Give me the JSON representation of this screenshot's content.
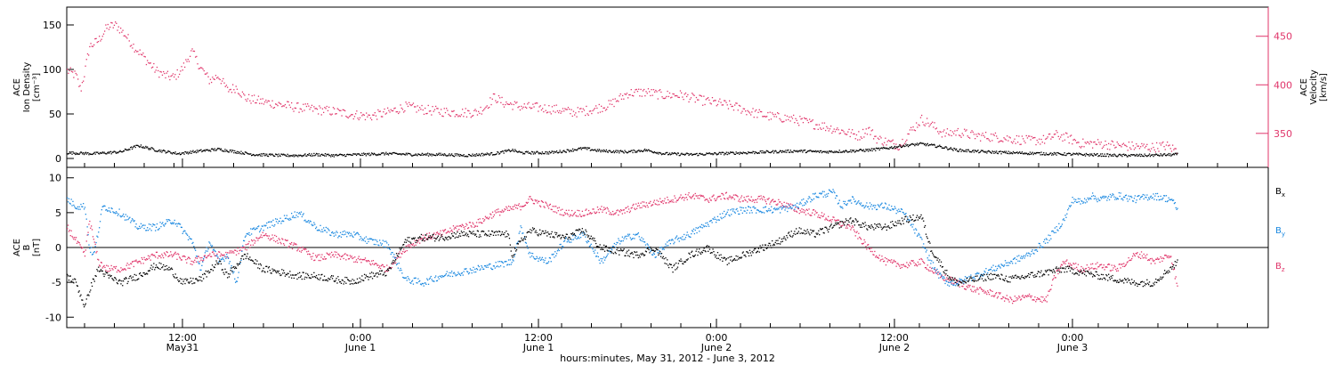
{
  "chart_data": [
    {
      "type": "scatter",
      "panel": "top",
      "ylabel": [
        "ACE",
        "Ion Density",
        "[cm⁻³]"
      ],
      "ylabel_right": [
        "ACE",
        "Velocity",
        "[km/s]"
      ],
      "ylim": [
        -10,
        170
      ],
      "yticks": [
        0,
        50,
        100,
        150
      ],
      "ylim_right": [
        315,
        480
      ],
      "yticks_right": [
        350,
        400,
        450
      ],
      "series": [
        {
          "name": "",
          "axis": "left",
          "color": "#000000",
          "x": [
            0,
            1,
            2,
            3,
            4,
            5,
            6,
            7,
            8,
            9,
            10,
            11,
            12,
            14,
            16,
            18,
            20,
            22,
            24,
            26,
            28,
            30,
            32,
            34,
            36,
            38,
            40,
            42,
            44,
            46,
            48,
            50,
            52,
            54,
            56,
            58,
            60,
            62,
            64,
            66,
            68,
            70,
            72,
            74,
            76,
            78,
            80,
            82,
            84,
            86,
            88,
            90,
            92,
            94,
            96,
            98,
            100,
            102,
            104,
            106,
            108,
            110,
            112,
            114,
            116,
            118,
            120,
            122,
            124,
            126,
            128,
            130,
            132,
            134,
            136,
            138,
            140,
            142,
            144,
            146,
            148,
            150,
            152,
            154,
            156,
            158,
            160,
            162,
            164,
            166,
            168,
            170,
            172,
            174,
            176,
            178,
            180,
            182,
            184,
            186,
            188,
            190,
            192,
            194,
            196,
            198,
            200,
            202,
            204,
            206,
            208,
            210,
            212,
            214,
            216,
            218,
            220,
            222,
            224,
            226,
            228,
            230,
            232,
            234,
            236,
            238,
            240,
            242,
            244,
            246,
            248,
            250,
            252,
            254,
            256,
            258,
            260,
            262,
            264,
            266,
            268,
            270,
            272,
            274,
            276,
            278,
            280,
            282,
            284,
            286,
            288,
            290,
            292,
            294,
            296,
            298,
            300,
            302,
            304,
            306,
            308,
            310,
            312,
            314,
            316,
            318,
            320,
            322,
            324,
            326,
            328,
            330,
            332,
            334,
            336,
            338,
            340,
            342,
            344,
            346,
            348,
            350,
            352,
            354,
            356,
            358,
            360,
            362,
            364,
            366,
            368,
            370,
            372,
            374,
            376,
            378,
            380,
            382,
            384,
            386,
            388,
            390,
            392,
            394,
            396,
            398,
            400,
            402,
            404,
            406,
            408,
            410,
            412,
            414,
            416,
            418,
            420,
            422,
            424,
            426,
            428,
            430,
            432,
            434,
            436,
            438,
            440,
            442,
            444,
            446,
            448,
            450,
            452,
            454,
            456,
            458,
            460,
            462,
            464,
            466,
            468,
            470,
            472,
            474,
            476,
            478,
            480,
            482,
            484,
            486,
            488,
            490,
            492,
            494,
            496,
            498,
            500,
            502,
            504,
            506,
            508,
            510,
            512,
            514,
            516,
            518,
            520,
            522,
            524,
            526,
            528,
            530,
            532,
            534,
            536,
            538,
            540,
            542,
            544,
            546,
            548,
            550,
            552,
            554,
            556,
            558,
            560,
            562,
            564,
            566,
            568,
            570,
            572,
            574,
            576,
            578,
            580,
            582,
            584,
            586,
            588,
            590,
            592,
            594,
            596,
            598,
            600,
            602,
            604,
            606,
            608,
            610,
            612,
            614,
            616,
            618,
            620,
            622,
            624,
            626,
            628,
            630,
            632,
            634,
            636,
            638,
            640,
            642,
            644,
            646,
            648,
            650,
            652,
            654,
            656,
            658,
            660,
            662,
            664,
            666,
            668,
            670,
            672,
            674,
            676,
            678,
            680,
            682,
            684,
            686,
            688,
            690,
            692,
            694,
            696,
            698,
            700,
            702,
            704,
            706,
            708,
            710,
            712,
            714,
            716,
            718,
            720,
            722,
            724,
            726,
            728,
            730,
            732,
            734,
            736,
            738,
            740,
            742,
            744,
            746,
            748,
            750,
            752,
            754,
            756,
            758,
            760,
            762,
            764,
            766,
            768,
            770,
            772,
            774,
            776,
            778,
            780,
            782,
            784,
            786,
            788,
            790,
            792,
            794,
            796,
            798,
            800,
            802,
            804,
            806,
            808,
            810,
            812,
            814,
            816,
            818,
            820,
            822,
            824,
            826,
            828,
            830,
            832,
            834,
            836,
            838,
            840,
            842,
            844,
            846,
            848,
            850,
            852,
            854,
            856,
            858,
            860,
            862,
            864,
            866,
            868,
            870,
            872,
            874,
            876,
            878,
            880,
            882,
            884,
            886,
            888,
            890,
            892,
            894,
            896,
            898,
            900,
            902,
            904,
            906,
            908,
            910,
            912,
            914,
            916,
            918,
            920,
            922,
            924,
            926,
            928,
            930,
            932,
            934,
            936,
            938,
            940,
            942,
            944,
            946,
            948,
            950,
            952,
            954,
            956,
            958,
            960,
            962,
            964,
            966,
            968,
            970,
            972,
            974,
            976,
            978,
            980,
            982,
            984,
            986,
            988,
            990,
            992,
            994,
            996,
            998,
            1000,
            1002,
            1004,
            1006,
            1008,
            1010,
            1012,
            1014,
            1016,
            1018,
            1020,
            1022,
            1024,
            1026,
            1028,
            1030,
            1032,
            1034,
            1036,
            1038,
            1040,
            1042,
            1044,
            1046,
            1048,
            1050,
            1052,
            1054,
            1056,
            1058,
            1060,
            1062,
            1064,
            1066,
            1068,
            1070,
            1072,
            1074,
            1076,
            1078,
            1080,
            1082,
            1084,
            1086,
            1088,
            1090,
            1092,
            1094,
            1096,
            1098,
            1100,
            1102,
            1104,
            1106,
            1108,
            1110,
            1112,
            1114,
            1116,
            1118,
            1120,
            1122,
            1124,
            1126,
            1128,
            1130,
            1132,
            1134,
            1136,
            1138,
            1140,
            1142,
            1144,
            1146,
            1148,
            1150,
            1152,
            1154,
            1156,
            1158,
            1160,
            1162,
            1164,
            1166,
            1168,
            1170,
            1172,
            1174,
            1176,
            1178,
            1180,
            1182,
            1184,
            1186,
            1188,
            1190,
            1192,
            1194,
            1196,
            1198,
            1200,
            1202,
            1204,
            1206,
            1208,
            1210,
            1212,
            1214,
            1216,
            1218,
            1220,
            1222,
            1224,
            1226,
            1228,
            1230,
            1232,
            1234,
            1236,
            1238,
            1240,
            1242,
            1244,
            1246,
            1248
          ],
          "y_keyframes_note": ""
        }
      ]
    }
  ]
}
